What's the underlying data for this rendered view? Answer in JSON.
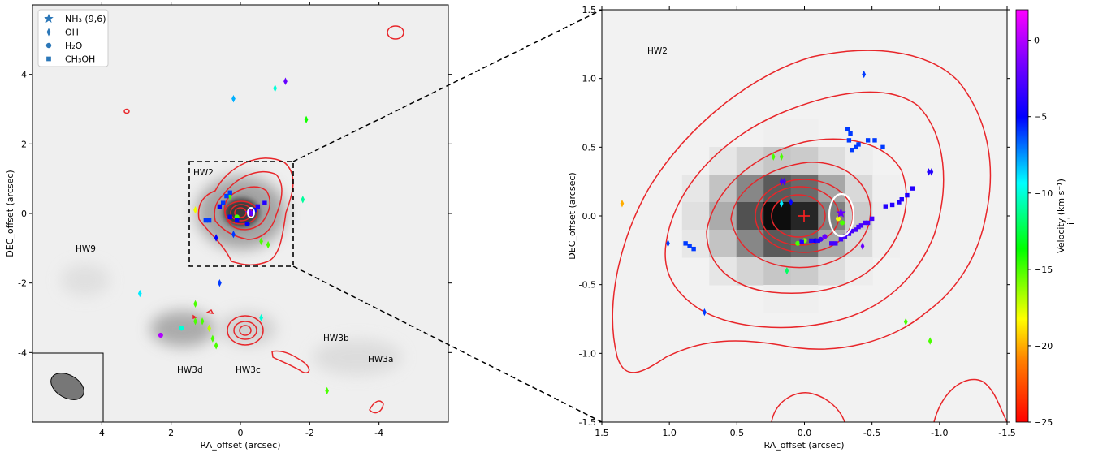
{
  "chart_data": [
    {
      "type": "scatter",
      "panel": "overview",
      "xlabel": "RA_offset (arcsec)",
      "ylabel": "DEC_offset (arcsec)",
      "xlim": [
        6,
        -6
      ],
      "ylim": [
        -6,
        6
      ],
      "xticks": [
        4,
        2,
        0,
        -2,
        -4
      ],
      "xtick_labels": [
        "4",
        "2",
        "0",
        "-2",
        "-4"
      ],
      "yticks": [
        4,
        2,
        0,
        -2,
        -4
      ],
      "ytick_labels": [
        "4",
        "2",
        "0",
        "-2",
        "-4"
      ],
      "legend": {
        "placement": "top-left",
        "entries": [
          {
            "label": "NH₃ (9,6)",
            "marker": "star"
          },
          {
            "label": "OH",
            "marker": "diamond"
          },
          {
            "label": "H₂O",
            "marker": "circle"
          },
          {
            "label": "CH₃OH",
            "marker": "square"
          }
        ]
      },
      "annotations": [
        "HW2",
        "HW9",
        "HW3b",
        "HW3a",
        "HW3d",
        "HW3c"
      ],
      "zoom_box": {
        "x": [
          1.5,
          -1.5
        ],
        "y": [
          -1.5,
          1.5
        ]
      },
      "series": [
        {
          "marker": "diamond",
          "maser": "OH",
          "points": [
            [
              0.2,
              3.3,
              -8
            ],
            [
              -1.0,
              3.6,
              -10
            ],
            [
              -1.3,
              3.8,
              -2
            ],
            [
              -1.9,
              2.7,
              -14
            ],
            [
              -1.8,
              0.4,
              -11
            ],
            [
              0.2,
              -0.6,
              -6
            ],
            [
              0.7,
              -0.7,
              -5
            ],
            [
              0.6,
              -2.0,
              -6
            ],
            [
              2.9,
              -2.3,
              -9
            ],
            [
              -0.8,
              -0.9,
              -15
            ],
            [
              -0.6,
              -0.8,
              -15
            ],
            [
              1.3,
              -2.6,
              -15
            ],
            [
              1.1,
              -3.1,
              -15
            ],
            [
              1.3,
              -3.1,
              -15
            ],
            [
              0.9,
              -3.3,
              -17
            ],
            [
              0.8,
              -3.6,
              -15
            ],
            [
              0.7,
              -3.8,
              -15
            ],
            [
              -2.5,
              -5.1,
              -15
            ],
            [
              -0.6,
              -3.0,
              -10
            ],
            [
              0.3,
              0.5,
              -15
            ],
            [
              1.3,
              0.1,
              -18
            ]
          ]
        },
        {
          "marker": "circle",
          "maser": "H2O",
          "points": [
            [
              2.3,
              -3.5,
              0
            ],
            [
              1.7,
              -3.3,
              -10
            ],
            [
              0.1,
              -0.1,
              -15
            ],
            [
              -0.2,
              -0.3,
              -5
            ]
          ]
        },
        {
          "marker": "square",
          "maser": "CH3OH",
          "points": [
            [
              1.0,
              -0.2,
              -6
            ],
            [
              0.9,
              -0.2,
              -6
            ],
            [
              0.3,
              0.6,
              -6
            ],
            [
              0.4,
              0.5,
              -6
            ],
            [
              0.5,
              0.3,
              -6
            ],
            [
              0.6,
              0.2,
              -5
            ],
            [
              -0.4,
              0.1,
              -5
            ],
            [
              -0.5,
              0.2,
              -4
            ],
            [
              -0.7,
              0.3,
              -4
            ],
            [
              -0.3,
              0.0,
              -4
            ],
            [
              0.3,
              -0.1,
              -5
            ],
            [
              0.1,
              -0.2,
              -5
            ]
          ]
        },
        {
          "marker": "star",
          "maser": "NH3 (9,6)",
          "points": [
            [
              -0.28,
              0.02,
              -2
            ]
          ]
        }
      ]
    },
    {
      "type": "scatter",
      "panel": "zoom",
      "title_label": "HW2",
      "xlabel": "RA_offset (arcsec)",
      "ylabel": "DEC_offset (arcsec)",
      "xlim": [
        1.5,
        -1.5
      ],
      "ylim": [
        -1.5,
        1.5
      ],
      "xticks": [
        1.5,
        1.0,
        0.5,
        0.0,
        -0.5,
        -1.0,
        -1.5
      ],
      "xtick_labels": [
        "1.5",
        "1.0",
        "0.5",
        "0.0",
        "-0.5",
        "-1.0",
        "-1.5"
      ],
      "yticks": [
        1.5,
        1.0,
        0.5,
        0.0,
        -0.5,
        -1.0,
        -1.5
      ],
      "ytick_labels": [
        "1.5",
        "1.0",
        "0.5",
        "0.0",
        "-0.5",
        "-1.0",
        "-1.5"
      ],
      "colorbar": {
        "label": "Velocity (km s⁻¹)",
        "range": [
          -25,
          2
        ],
        "ticks": [
          0,
          -5,
          -10,
          -15,
          -20,
          -25
        ],
        "tick_labels": [
          "0",
          "−5",
          "−10",
          "−15",
          "−20",
          "−25"
        ],
        "colormap": "gist_rainbow"
      },
      "continuum_peak": [
        0.0,
        0.0
      ],
      "series": [
        {
          "marker": "diamond",
          "maser": "OH",
          "points": [
            [
              -0.44,
              1.03,
              -6
            ],
            [
              1.35,
              0.09,
              -20
            ],
            [
              1.01,
              -0.2,
              -6
            ],
            [
              0.74,
              -0.7,
              -6
            ],
            [
              0.15,
              0.25,
              -3
            ],
            [
              0.17,
              0.25,
              -3
            ],
            [
              0.1,
              0.1,
              -5
            ],
            [
              -0.75,
              -0.77,
              -15
            ],
            [
              -0.93,
              -0.91,
              -15
            ],
            [
              -0.92,
              0.32,
              -4
            ],
            [
              -0.94,
              0.32,
              -4
            ],
            [
              0.13,
              -0.4,
              -12
            ],
            [
              0.17,
              0.09,
              -9
            ],
            [
              0.23,
              0.43,
              -15
            ],
            [
              0.17,
              0.43,
              -15
            ],
            [
              -0.43,
              -0.22,
              -2
            ]
          ]
        },
        {
          "marker": "circle",
          "maser": "H2O",
          "points": [
            [
              0.05,
              -0.2,
              -15
            ],
            [
              0.0,
              -0.18,
              -16
            ],
            [
              -0.08,
              -0.18,
              -5
            ],
            [
              -0.12,
              -0.17,
              -3
            ],
            [
              -0.25,
              -0.02,
              -18
            ],
            [
              -0.28,
              -0.05,
              -15
            ],
            [
              -0.15,
              -0.15,
              -2
            ]
          ]
        },
        {
          "marker": "square",
          "maser": "CH3OH",
          "points": [
            [
              0.88,
              -0.2,
              -6
            ],
            [
              0.85,
              -0.22,
              -6
            ],
            [
              0.82,
              -0.24,
              -6
            ],
            [
              -0.32,
              0.63,
              -6
            ],
            [
              -0.34,
              0.6,
              -6
            ],
            [
              -0.33,
              0.55,
              -6
            ],
            [
              -0.35,
              0.48,
              -6
            ],
            [
              -0.38,
              0.5,
              -6
            ],
            [
              -0.4,
              0.52,
              -6
            ],
            [
              -0.47,
              0.55,
              -6
            ],
            [
              -0.52,
              0.55,
              -6
            ],
            [
              -0.58,
              0.5,
              -6
            ],
            [
              -0.7,
              0.1,
              -4
            ],
            [
              -0.72,
              0.12,
              -4
            ],
            [
              -0.76,
              0.15,
              -4
            ],
            [
              -0.8,
              0.2,
              -4
            ],
            [
              -0.6,
              0.07,
              -4
            ],
            [
              -0.65,
              0.08,
              -4
            ],
            [
              -0.5,
              -0.02,
              -3
            ],
            [
              -0.47,
              -0.05,
              -3
            ],
            [
              -0.45,
              -0.05,
              -3
            ],
            [
              -0.42,
              -0.07,
              -3
            ],
            [
              -0.4,
              -0.08,
              -3
            ],
            [
              -0.38,
              -0.1,
              -3
            ],
            [
              -0.35,
              -0.11,
              -3
            ],
            [
              -0.33,
              -0.13,
              -3
            ],
            [
              -0.3,
              -0.15,
              -3
            ],
            [
              -0.27,
              -0.17,
              -3
            ],
            [
              -0.23,
              -0.2,
              -3
            ],
            [
              -0.2,
              -0.2,
              -3
            ],
            [
              -0.05,
              -0.18,
              -4
            ],
            [
              -0.1,
              -0.18,
              -4
            ],
            [
              0.02,
              -0.19,
              -4
            ]
          ]
        },
        {
          "marker": "star",
          "maser": "NH3 (9,6)",
          "points": [
            [
              -0.27,
              0.02,
              -2
            ]
          ]
        }
      ]
    }
  ],
  "panel_labels": {
    "hw2_zoom": "HW2",
    "colorbar_extra": "i  ’"
  }
}
